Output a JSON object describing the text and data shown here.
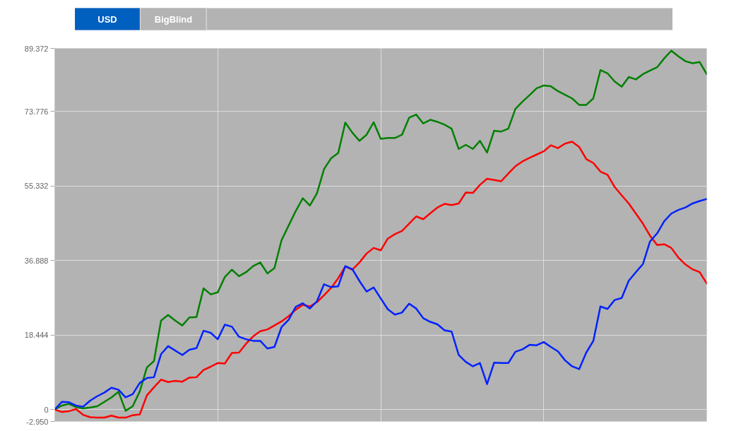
{
  "chart_data": {
    "type": "line",
    "annotations": [
      "USD",
      "BigBlind"
    ],
    "categories": [
      null,
      null,
      null,
      null,
      null,
      null,
      null,
      null,
      null,
      null,
      null,
      null,
      null,
      null,
      null,
      null,
      null,
      null,
      null,
      null,
      null,
      null,
      null,
      null,
      null,
      null,
      null,
      null,
      null,
      null,
      null,
      null,
      null,
      null,
      null,
      null,
      null,
      null,
      null,
      null,
      null,
      null,
      null,
      null,
      null,
      null,
      null,
      null,
      null,
      null,
      null,
      null,
      null,
      null,
      null,
      null,
      null,
      null,
      null,
      null,
      null,
      null,
      null,
      null,
      null,
      null,
      null,
      null,
      null,
      null,
      null,
      null,
      null,
      null,
      null,
      null,
      null,
      null,
      null,
      null,
      null,
      null,
      null,
      null,
      null,
      null,
      null,
      null,
      null,
      null,
      null,
      null,
      null
    ],
    "series": [
      {
        "color": "#008000",
        "values": [
          0,
          1.0,
          1.4,
          0.6,
          0.3,
          0.5,
          0.8,
          1.9,
          3.0,
          4.4,
          -0.3,
          0.8,
          4.5,
          10.4,
          12.0,
          22.0,
          23.4,
          22.0,
          20.8,
          22.8,
          22.9,
          30.0,
          28.5,
          29.0,
          32.8,
          34.6,
          33.0,
          34.0,
          35.5,
          36.4,
          33.7,
          35.0,
          41.9,
          45.5,
          49.1,
          52.3,
          50.5,
          53.5,
          59.5,
          62.2,
          63.5,
          71.0,
          68.5,
          66.5,
          68.0,
          71.1,
          67.0,
          67.2,
          67.2,
          68.0,
          72.2,
          73.0,
          70.8,
          71.7,
          71.2,
          70.5,
          69.5,
          64.5,
          65.5,
          64.5,
          66.5,
          63.6,
          69.0,
          68.8,
          69.5,
          74.4,
          76.2,
          77.8,
          79.5,
          80.2,
          80.0,
          78.8,
          77.9,
          77.0,
          75.4,
          75.4,
          77.0,
          84.0,
          83.2,
          81.2,
          79.9,
          82.3,
          81.7,
          83.0,
          83.9,
          84.7,
          86.9,
          88.8,
          87.4,
          86.2,
          85.7,
          86.0,
          83.0
        ]
      },
      {
        "color": "#ff0000",
        "values": [
          0,
          -0.6,
          -0.4,
          0.1,
          -1.3,
          -1.9,
          -2.0,
          -2.0,
          -1.5,
          -2.0,
          -2.0,
          -1.4,
          -1.2,
          3.5,
          5.5,
          7.4,
          6.8,
          7.1,
          6.9,
          7.9,
          8.0,
          9.8,
          10.6,
          11.5,
          11.4,
          14.0,
          14.1,
          16.3,
          18.1,
          19.4,
          19.8,
          20.8,
          21.8,
          23.1,
          24.7,
          25.9,
          25.5,
          26.6,
          28.3,
          30.1,
          32.5,
          35.4,
          34.6,
          36.4,
          38.6,
          40.0,
          39.4,
          42.3,
          43.4,
          44.2,
          46.0,
          47.8,
          47.1,
          48.6,
          50.0,
          50.9,
          50.6,
          51.0,
          53.7,
          53.6,
          55.6,
          57.1,
          56.8,
          56.5,
          58.4,
          60.2,
          61.4,
          62.3,
          63.1,
          63.9,
          65.4,
          64.7,
          65.8,
          66.3,
          65.0,
          62.0,
          61.0,
          58.9,
          58.1,
          55.1,
          53.0,
          51.0,
          48.5,
          46.0,
          43.0,
          40.7,
          40.9,
          40.0,
          37.6,
          35.9,
          34.7,
          34.0,
          31.2
        ]
      },
      {
        "color": "#0022ff",
        "values": [
          0,
          1.9,
          1.8,
          1.0,
          0.7,
          2.2,
          3.3,
          4.2,
          5.4,
          4.9,
          3.0,
          3.8,
          6.6,
          7.8,
          8.0,
          13.7,
          15.7,
          14.6,
          13.5,
          14.8,
          15.2,
          19.5,
          19.0,
          17.4,
          21.0,
          20.5,
          18.0,
          17.4,
          17.0,
          17.0,
          15.1,
          15.5,
          20.4,
          22.2,
          25.4,
          26.3,
          25.0,
          26.8,
          31.0,
          30.3,
          30.5,
          35.5,
          34.7,
          31.8,
          29.2,
          30.2,
          27.5,
          24.8,
          23.5,
          24.0,
          26.2,
          25.0,
          22.6,
          21.7,
          21.1,
          19.6,
          19.3,
          13.5,
          11.8,
          10.7,
          11.5,
          6.3,
          11.6,
          11.5,
          11.5,
          14.3,
          14.9,
          16.0,
          15.9,
          16.7,
          15.5,
          14.4,
          12.2,
          10.7,
          10.0,
          14.1,
          17.0,
          25.5,
          24.9,
          27.1,
          27.6,
          31.9,
          34.0,
          36.0,
          41.6,
          43.6,
          46.6,
          48.5,
          49.4,
          50.0,
          51.0,
          51.6,
          52.1
        ]
      }
    ],
    "ylim": [
      -2.95,
      89.372
    ],
    "yticks": [
      {
        "value": -2.95,
        "label": "-2.950"
      },
      0,
      18.444,
      36.888,
      55.332,
      73.776,
      89.372
    ],
    "grid": true
  }
}
